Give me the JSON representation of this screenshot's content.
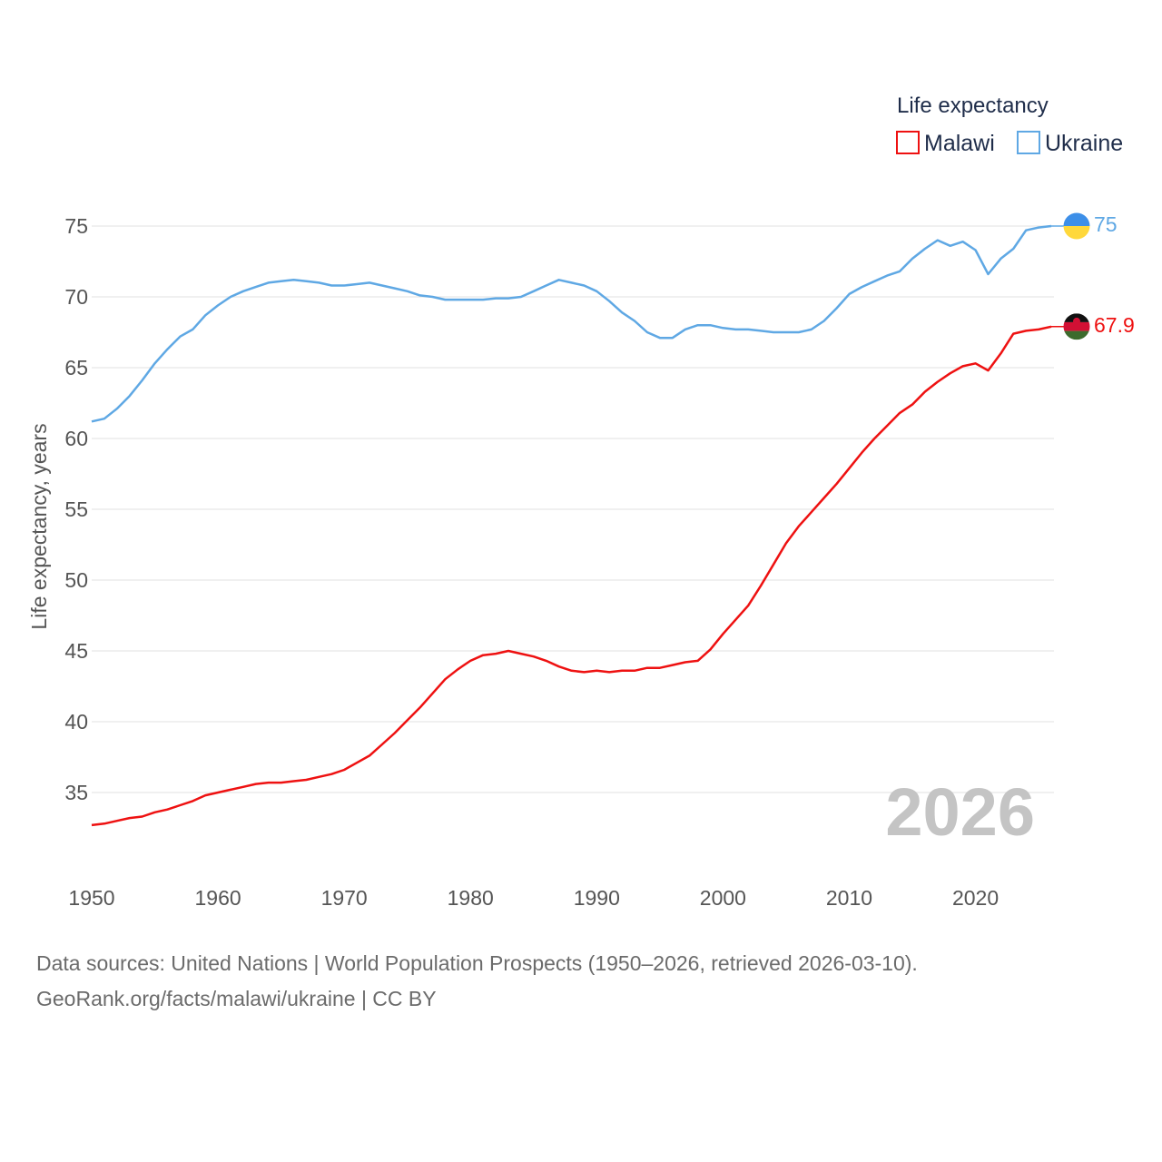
{
  "colors": {
    "malawi": "#ee1111",
    "ukraine": "#5fa8e4",
    "grid": "#e6e6e6",
    "text": "#555555"
  },
  "legend": {
    "title": "Life expectancy"
  },
  "source": {
    "line1": "Data sources: United Nations | World Population Prospects (1950–2026, retrieved 2026-03-10).",
    "line2": "GeoRank.org/facts/malawi/ukraine | CC BY"
  },
  "chart_data": {
    "type": "line",
    "title": "",
    "xlabel": "",
    "ylabel": "Life expectancy, years",
    "xlim": [
      1950,
      2026
    ],
    "ylim": [
      31,
      78
    ],
    "x_ticks": [
      1950,
      1960,
      1970,
      1980,
      1990,
      2000,
      2010,
      2020
    ],
    "y_ticks": [
      35,
      40,
      45,
      50,
      55,
      60,
      65,
      70,
      75
    ],
    "year_label": "2026",
    "legend_position": "top-right",
    "x": [
      1950,
      1951,
      1952,
      1953,
      1954,
      1955,
      1956,
      1957,
      1958,
      1959,
      1960,
      1961,
      1962,
      1963,
      1964,
      1965,
      1966,
      1967,
      1968,
      1969,
      1970,
      1971,
      1972,
      1973,
      1974,
      1975,
      1976,
      1977,
      1978,
      1979,
      1980,
      1981,
      1982,
      1983,
      1984,
      1985,
      1986,
      1987,
      1988,
      1989,
      1990,
      1991,
      1992,
      1993,
      1994,
      1995,
      1996,
      1997,
      1998,
      1999,
      2000,
      2001,
      2002,
      2003,
      2004,
      2005,
      2006,
      2007,
      2008,
      2009,
      2010,
      2011,
      2012,
      2013,
      2014,
      2015,
      2016,
      2017,
      2018,
      2019,
      2020,
      2021,
      2022,
      2023,
      2024,
      2025,
      2026
    ],
    "series": [
      {
        "name": "Malawi",
        "color": "#ee1111",
        "end_label": "67.9",
        "values": [
          32.7,
          32.8,
          33.0,
          33.2,
          33.3,
          33.6,
          33.8,
          34.1,
          34.4,
          34.8,
          35.0,
          35.2,
          35.4,
          35.6,
          35.7,
          35.7,
          35.8,
          35.9,
          36.1,
          36.3,
          36.6,
          37.1,
          37.6,
          38.4,
          39.2,
          40.1,
          41.0,
          42.0,
          43.0,
          43.7,
          44.3,
          44.7,
          44.8,
          45.0,
          44.8,
          44.6,
          44.3,
          43.9,
          43.6,
          43.5,
          43.6,
          43.5,
          43.6,
          43.6,
          43.8,
          43.8,
          44.0,
          44.2,
          44.3,
          45.1,
          46.2,
          47.2,
          48.2,
          49.6,
          51.1,
          52.6,
          53.8,
          54.8,
          55.8,
          56.8,
          57.9,
          59.0,
          60.0,
          60.9,
          61.8,
          62.4,
          63.3,
          64.0,
          64.6,
          65.1,
          65.3,
          64.8,
          66.0,
          67.4,
          67.6,
          67.7,
          67.9
        ]
      },
      {
        "name": "Ukraine",
        "color": "#5fa8e4",
        "end_label": "75",
        "values": [
          61.2,
          61.4,
          62.1,
          63.0,
          64.1,
          65.3,
          66.3,
          67.2,
          67.7,
          68.7,
          69.4,
          70.0,
          70.4,
          70.7,
          71.0,
          71.1,
          71.2,
          71.1,
          71.0,
          70.8,
          70.8,
          70.9,
          71.0,
          70.8,
          70.6,
          70.4,
          70.1,
          70.0,
          69.8,
          69.8,
          69.8,
          69.8,
          69.9,
          69.9,
          70.0,
          70.4,
          70.8,
          71.2,
          71.0,
          70.8,
          70.4,
          69.7,
          68.9,
          68.3,
          67.5,
          67.1,
          67.1,
          67.7,
          68.0,
          68.0,
          67.8,
          67.7,
          67.7,
          67.6,
          67.5,
          67.5,
          67.5,
          67.7,
          68.3,
          69.2,
          70.2,
          70.7,
          71.1,
          71.5,
          71.8,
          72.7,
          73.4,
          74.0,
          73.6,
          73.9,
          73.3,
          71.6,
          72.7,
          73.4,
          74.7,
          74.9,
          75.0
        ]
      }
    ]
  }
}
